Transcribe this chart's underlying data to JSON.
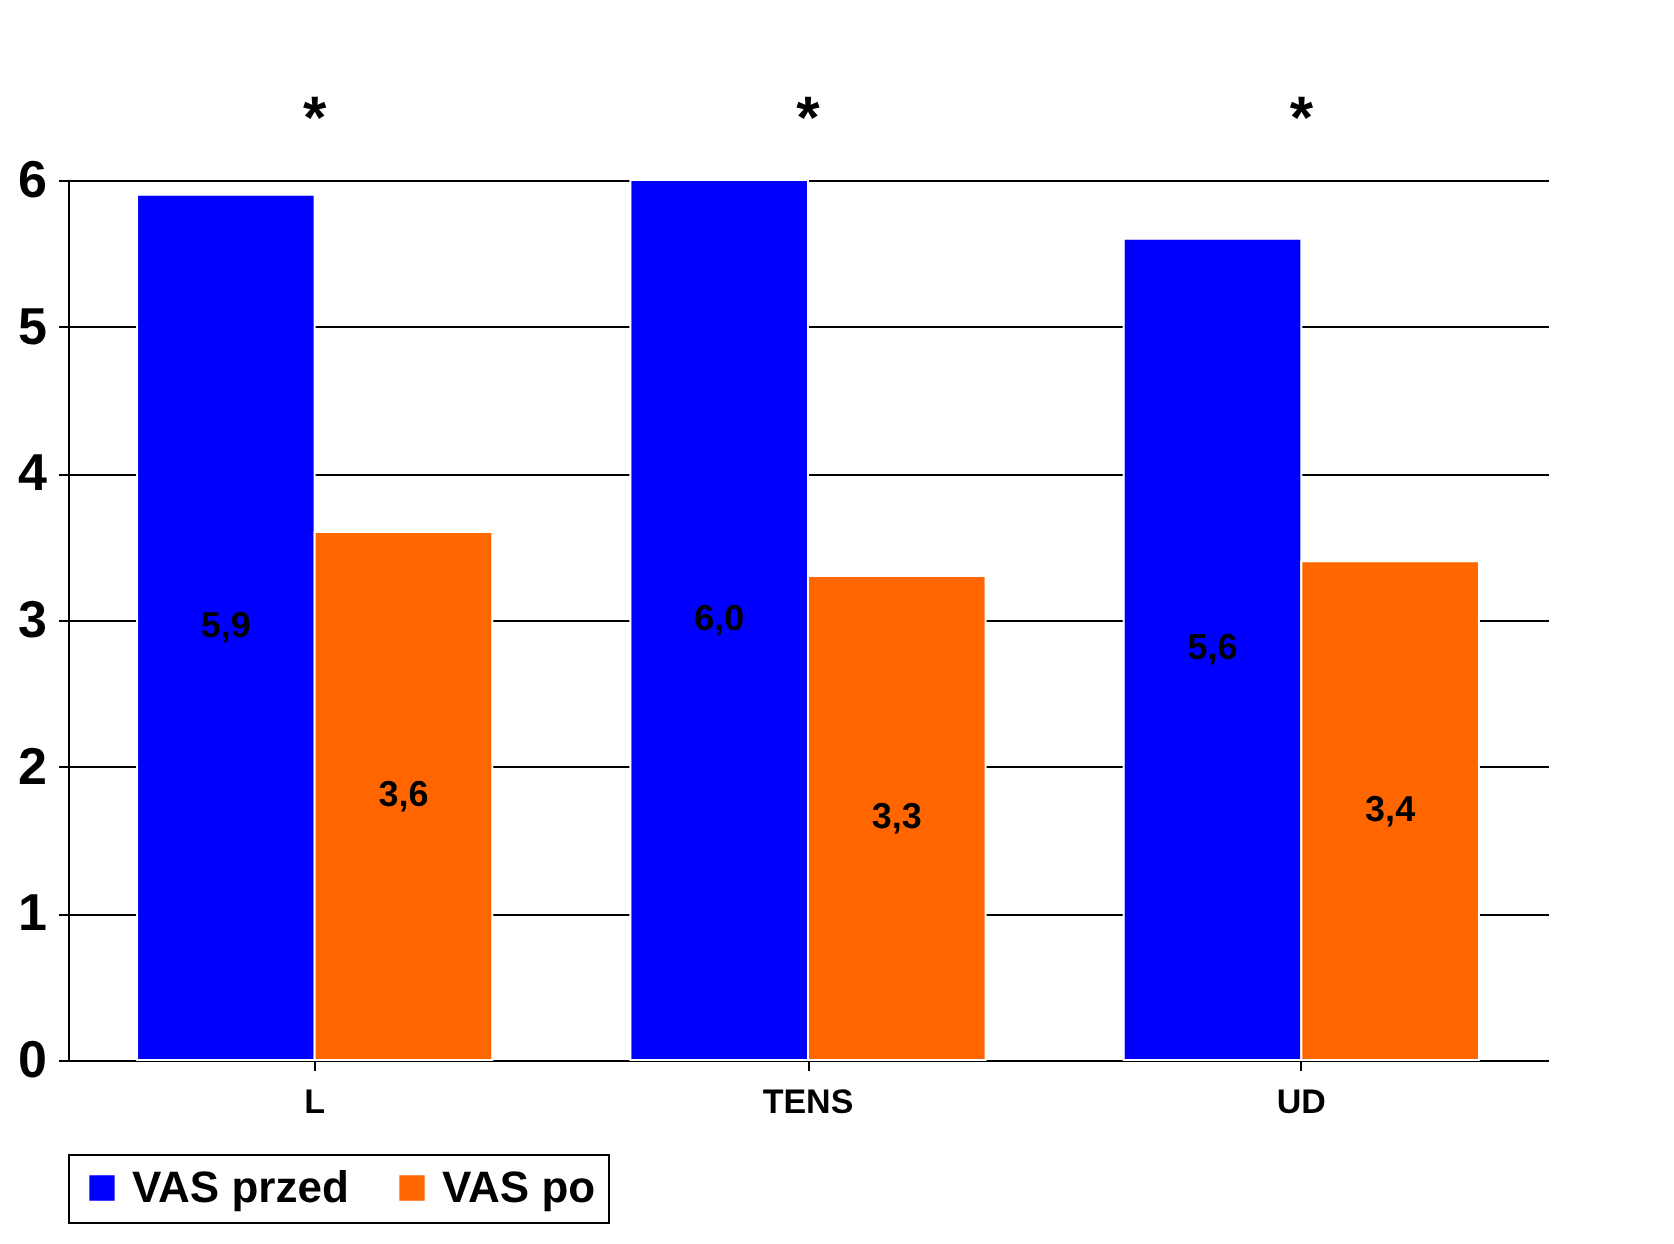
{
  "chart_data": {
    "type": "bar",
    "categories": [
      "L",
      "TENS",
      "UD"
    ],
    "series": [
      {
        "name": "VAS przed",
        "color": "#0000ff",
        "values": [
          5.9,
          6.0,
          5.6
        ],
        "value_labels": [
          "5,9",
          "6,0",
          "5,6"
        ]
      },
      {
        "name": "VAS po",
        "color": "#ff6600",
        "values": [
          3.6,
          3.3,
          3.4
        ],
        "value_labels": [
          "3,6",
          "3,3",
          "3,4"
        ]
      }
    ],
    "ylim": [
      0,
      6
    ],
    "yticks": [
      0,
      1,
      2,
      3,
      4,
      5,
      6
    ],
    "grid": "y",
    "legend": "bottom",
    "annotations": [
      "*",
      "*",
      "*"
    ]
  }
}
